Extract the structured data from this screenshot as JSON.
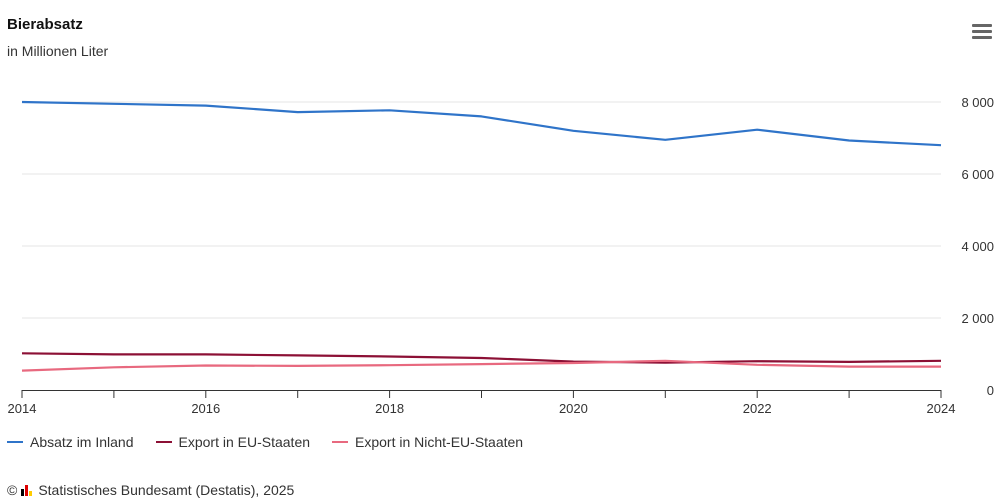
{
  "header": {
    "title": "Bierabsatz",
    "subtitle": "in Millionen Liter"
  },
  "credits": {
    "copyright": "©",
    "text": "Statistisches Bundesamt (Destatis), 2025",
    "logo_colors": [
      "#000000",
      "#dd0000",
      "#ffcc00"
    ]
  },
  "menu": {
    "icon": "hamburger-menu-icon"
  },
  "chart_data": {
    "type": "line",
    "title": "Bierabsatz",
    "subtitle": "in Millionen Liter",
    "x": [
      2014,
      2015,
      2016,
      2017,
      2018,
      2019,
      2020,
      2021,
      2022,
      2023,
      2024
    ],
    "xlim": [
      2014,
      2024
    ],
    "ylim": [
      0,
      9000
    ],
    "x_tick_labels": [
      "2014",
      "2016",
      "2018",
      "2020",
      "2022",
      "2024"
    ],
    "y_ticks": [
      0,
      2000,
      4000,
      6000,
      8000
    ],
    "y_tick_labels": [
      "0",
      "2 000",
      "4 000",
      "6 000",
      "8 000"
    ],
    "y_axis_side": "right",
    "grid": true,
    "legend": "bottom-left",
    "series": [
      {
        "name": "Absatz im Inland",
        "color": "#2f74c9",
        "values": [
          8000,
          7950,
          7900,
          7720,
          7770,
          7600,
          7200,
          6950,
          7230,
          6930,
          6800
        ]
      },
      {
        "name": "Export in EU-Staaten",
        "color": "#8c1035",
        "values": [
          1020,
          990,
          990,
          960,
          930,
          890,
          790,
          760,
          800,
          780,
          810
        ]
      },
      {
        "name": "Export in Nicht-EU-Staaten",
        "color": "#e8697f",
        "values": [
          540,
          630,
          680,
          670,
          690,
          720,
          750,
          810,
          700,
          650,
          650
        ]
      }
    ]
  }
}
